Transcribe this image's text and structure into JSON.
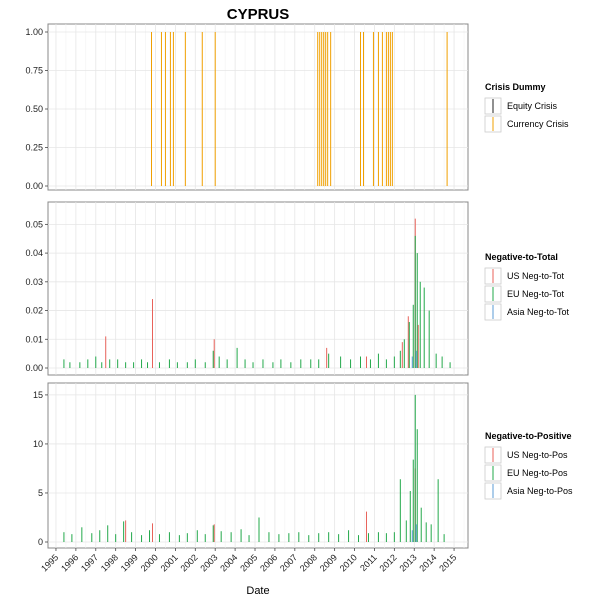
{
  "title": "CYPRUS",
  "x_axis": {
    "label": "Date",
    "years": [
      "1995",
      "1996",
      "1997",
      "1998",
      "1999",
      "2000",
      "2001",
      "2002",
      "2003",
      "2004",
      "2005",
      "2006",
      "2007",
      "2008",
      "2009",
      "2010",
      "2011",
      "2012",
      "2013",
      "2014",
      "2015"
    ]
  },
  "colors": {
    "equity": "#222222",
    "currency": "#f0a000",
    "us": "#e8625a",
    "eu": "#22a84a",
    "asia": "#5b9bd5",
    "grid": "#e6e6e6",
    "frame": "#888888"
  },
  "chart_data": [
    {
      "type": "bar",
      "panel": "crisis",
      "legend_title": "Crisis Dummy",
      "ylim": [
        0,
        1
      ],
      "yticks": [
        "1.00",
        "0.75",
        "0.50",
        "0.25",
        "0.00"
      ],
      "ytick_values": [
        1,
        0.75,
        0.5,
        0.25,
        0
      ],
      "series": [
        {
          "name": "Equity Crisis",
          "key": "equity",
          "x": [],
          "values": []
        },
        {
          "name": "Currency Crisis",
          "key": "currency",
          "x": [
            1999.8,
            2000.3,
            2000.5,
            2000.75,
            2000.9,
            2001.5,
            2002.35,
            2003.0,
            2008.15,
            2008.25,
            2008.35,
            2008.45,
            2008.55,
            2008.65,
            2008.8,
            2010.3,
            2010.45,
            2010.95,
            2011.2,
            2011.4,
            2011.6,
            2011.7,
            2011.8,
            2011.9,
            2014.65
          ],
          "values": [
            1,
            1,
            1,
            1,
            1,
            1,
            1,
            1,
            1,
            1,
            1,
            1,
            1,
            1,
            1,
            1,
            1,
            1,
            1,
            1,
            1,
            1,
            1,
            1,
            1
          ]
        }
      ]
    },
    {
      "type": "bar",
      "panel": "neg_to_total",
      "legend_title": "Negative-to-Total",
      "ylim": [
        0,
        0.055
      ],
      "yticks": [
        "0.05",
        "0.04",
        "0.03",
        "0.02",
        "0.01",
        "0.00"
      ],
      "ytick_values": [
        0.05,
        0.04,
        0.03,
        0.02,
        0.01,
        0
      ],
      "series": [
        {
          "name": "US Neg-to-Tot",
          "key": "us",
          "x": [
            1997.5,
            1999.85,
            2002.95,
            2008.6,
            2010.6,
            2012.4,
            2012.7,
            2013.05,
            2013.2
          ],
          "values": [
            0.011,
            0.024,
            0.01,
            0.007,
            0.004,
            0.009,
            0.018,
            0.052,
            0.015
          ]
        },
        {
          "name": "EU Neg-to-Tot",
          "key": "eu",
          "x": [
            1995.4,
            1995.7,
            1996.2,
            1996.6,
            1997.0,
            1997.3,
            1997.7,
            1998.1,
            1998.5,
            1998.9,
            1999.3,
            1999.6,
            2000.2,
            2000.7,
            2001.1,
            2001.6,
            2002.0,
            2002.5,
            2002.9,
            2003.2,
            2003.6,
            2004.1,
            2004.5,
            2004.9,
            2005.4,
            2005.9,
            2006.3,
            2006.8,
            2007.3,
            2007.8,
            2008.2,
            2008.7,
            2009.3,
            2009.8,
            2010.3,
            2010.8,
            2011.2,
            2011.6,
            2012.0,
            2012.3,
            2012.5,
            2012.75,
            2012.95,
            2013.05,
            2013.15,
            2013.3,
            2013.5,
            2013.75,
            2014.1,
            2014.4,
            2014.8
          ],
          "values": [
            0.003,
            0.002,
            0.002,
            0.003,
            0.004,
            0.002,
            0.003,
            0.003,
            0.002,
            0.002,
            0.003,
            0.002,
            0.002,
            0.003,
            0.002,
            0.002,
            0.003,
            0.002,
            0.006,
            0.004,
            0.003,
            0.007,
            0.003,
            0.002,
            0.003,
            0.002,
            0.003,
            0.002,
            0.003,
            0.003,
            0.003,
            0.005,
            0.004,
            0.003,
            0.004,
            0.003,
            0.005,
            0.003,
            0.004,
            0.006,
            0.01,
            0.016,
            0.022,
            0.046,
            0.04,
            0.03,
            0.028,
            0.02,
            0.005,
            0.004,
            0.002
          ]
        },
        {
          "name": "Asia Neg-to-Tot",
          "key": "asia",
          "x": [
            2012.9,
            2013.1
          ],
          "values": [
            0.004,
            0.006
          ]
        }
      ]
    },
    {
      "type": "bar",
      "panel": "neg_to_pos",
      "legend_title": "Negative-to-Positive",
      "ylim": [
        0,
        15.5
      ],
      "yticks": [
        "15",
        "10",
        "5",
        "0"
      ],
      "ytick_values": [
        15,
        10,
        5,
        0
      ],
      "series": [
        {
          "name": "US Neg-to-Pos",
          "key": "us",
          "x": [
            1998.5,
            1999.85,
            2002.95,
            2010.6,
            2013.05
          ],
          "values": [
            2.2,
            1.9,
            1.8,
            3.1,
            7.5
          ]
        },
        {
          "name": "EU Neg-to-Pos",
          "key": "eu",
          "x": [
            1995.4,
            1995.8,
            1996.3,
            1996.8,
            1997.2,
            1997.6,
            1998.0,
            1998.4,
            1998.8,
            1999.3,
            1999.7,
            2000.2,
            2000.7,
            2001.2,
            2001.6,
            2002.1,
            2002.5,
            2002.9,
            2003.3,
            2003.8,
            2004.3,
            2004.7,
            2005.2,
            2005.7,
            2006.2,
            2006.7,
            2007.2,
            2007.7,
            2008.2,
            2008.7,
            2009.2,
            2009.7,
            2010.2,
            2010.7,
            2011.2,
            2011.6,
            2012.0,
            2012.3,
            2012.6,
            2012.8,
            2012.95,
            2013.05,
            2013.15,
            2013.35,
            2013.6,
            2013.85,
            2014.2,
            2014.5
          ],
          "values": [
            1.0,
            0.8,
            1.5,
            0.9,
            1.2,
            1.7,
            0.8,
            2.1,
            1.0,
            0.7,
            1.2,
            0.8,
            1.0,
            0.7,
            0.9,
            1.2,
            0.8,
            1.7,
            1.1,
            1.0,
            1.3,
            0.7,
            2.5,
            1.0,
            0.8,
            0.9,
            1.0,
            0.7,
            0.9,
            1.0,
            0.8,
            1.2,
            0.7,
            0.9,
            1.0,
            0.9,
            1.0,
            6.4,
            2.2,
            5.2,
            8.4,
            15.0,
            11.5,
            3.5,
            2.0,
            1.8,
            6.4,
            0.8
          ]
        },
        {
          "name": "Asia Neg-to-Pos",
          "key": "asia",
          "x": [
            2012.9,
            2013.1
          ],
          "values": [
            1.2,
            1.8
          ]
        }
      ]
    }
  ]
}
